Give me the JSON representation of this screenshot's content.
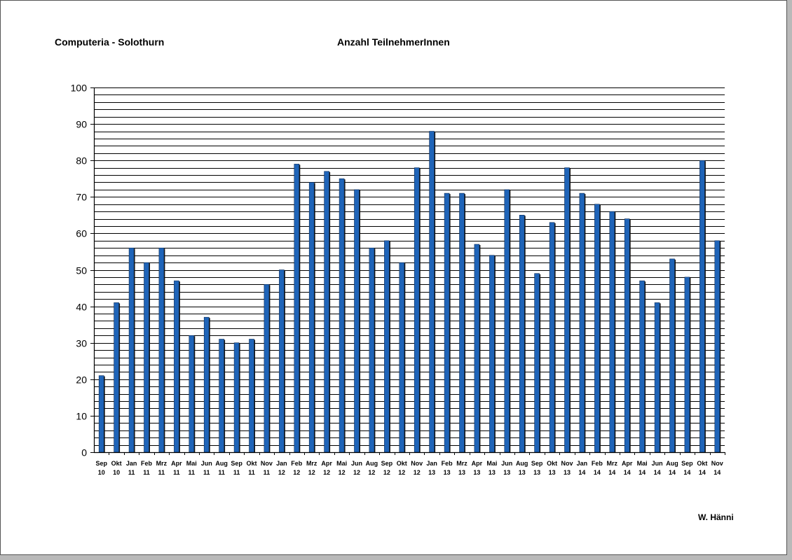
{
  "header": {
    "org": "Computeria - Solothurn",
    "title": "Anzahl TeilnehmerInnen",
    "author": "W. Hänni"
  },
  "chart_data": {
    "type": "bar",
    "title": "Anzahl TeilnehmerInnen",
    "xlabel": "",
    "ylabel": "",
    "ylim": [
      0,
      100
    ],
    "yticks": [
      0,
      10,
      20,
      30,
      40,
      50,
      60,
      70,
      80,
      90,
      100
    ],
    "grid": true,
    "grid_step": 2,
    "bar_color": "#1f64b8",
    "categories": [
      [
        "Sep",
        "10"
      ],
      [
        "Okt",
        "10"
      ],
      [
        "Jan",
        "11"
      ],
      [
        "Feb",
        "11"
      ],
      [
        "Mrz",
        "11"
      ],
      [
        "Apr",
        "11"
      ],
      [
        "Mai",
        "11"
      ],
      [
        "Jun",
        "11"
      ],
      [
        "Aug",
        "11"
      ],
      [
        "Sep",
        "11"
      ],
      [
        "Okt",
        "11"
      ],
      [
        "Nov",
        "11"
      ],
      [
        "Jan",
        "12"
      ],
      [
        "Feb",
        "12"
      ],
      [
        "Mrz",
        "12"
      ],
      [
        "Apr",
        "12"
      ],
      [
        "Mai",
        "12"
      ],
      [
        "Jun",
        "12"
      ],
      [
        "Aug",
        "12"
      ],
      [
        "Sep",
        "12"
      ],
      [
        "Okt",
        "12"
      ],
      [
        "Nov",
        "12"
      ],
      [
        "Jan",
        "13"
      ],
      [
        "Feb",
        "13"
      ],
      [
        "Mrz",
        "13"
      ],
      [
        "Apr",
        "13"
      ],
      [
        "Mai",
        "13"
      ],
      [
        "Jun",
        "13"
      ],
      [
        "Aug",
        "13"
      ],
      [
        "Sep",
        "13"
      ],
      [
        "Okt",
        "13"
      ],
      [
        "Nov",
        "13"
      ],
      [
        "Jan",
        "14"
      ],
      [
        "Feb",
        "14"
      ],
      [
        "Mrz",
        "14"
      ],
      [
        "Apr",
        "14"
      ],
      [
        "Mai",
        "14"
      ],
      [
        "Jun",
        "14"
      ],
      [
        "Aug",
        "14"
      ],
      [
        "Sep",
        "14"
      ],
      [
        "Okt",
        "14"
      ],
      [
        "Nov",
        "14"
      ]
    ],
    "values": [
      21,
      41,
      56,
      52,
      56,
      47,
      32,
      37,
      31,
      30,
      31,
      46,
      50,
      79,
      74,
      77,
      75,
      72,
      56,
      58,
      52,
      78,
      88,
      71,
      71,
      57,
      54,
      72,
      65,
      49,
      63,
      78,
      71,
      68,
      66,
      64,
      47,
      41,
      53,
      48,
      80,
      58
    ]
  }
}
